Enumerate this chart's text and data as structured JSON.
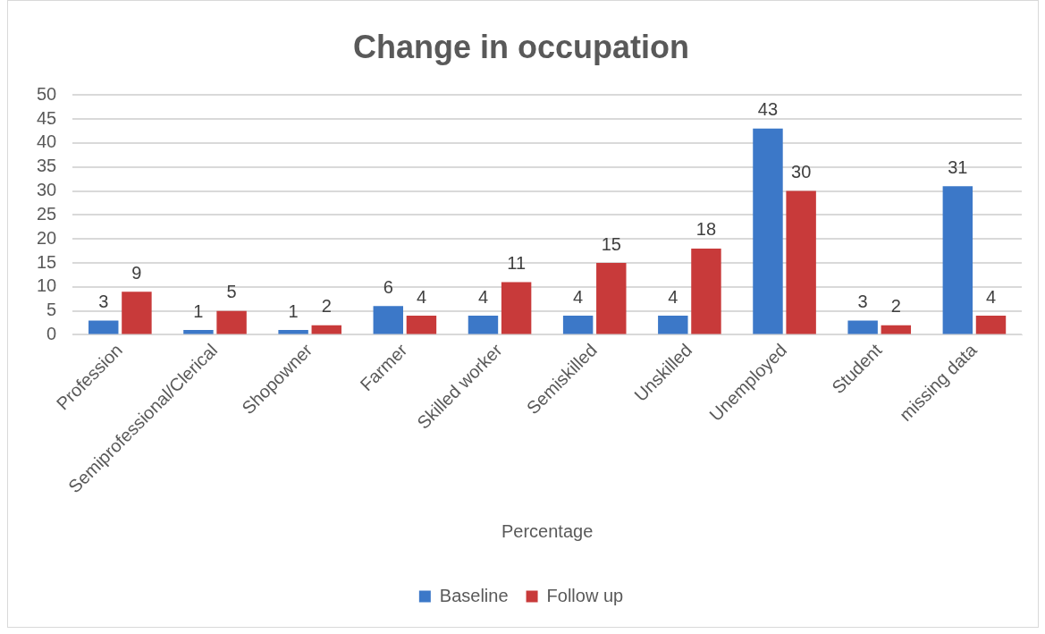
{
  "chart_data": {
    "type": "bar",
    "title": "Change in occupation",
    "xlabel": "Percentage",
    "categories": [
      "Profession",
      "Semiprofessional/Clerical",
      "Shopowner",
      "Farmer",
      "Skilled worker",
      "Semiskilled",
      "Unskilled",
      "Unemployed",
      "Student",
      "missing data"
    ],
    "series": [
      {
        "name": "Baseline",
        "color": "#3c78c8",
        "values": [
          3,
          1,
          1,
          6,
          4,
          4,
          4,
          43,
          3,
          31
        ]
      },
      {
        "name": "Follow up",
        "color": "#c83a3a",
        "values": [
          9,
          5,
          2,
          4,
          11,
          15,
          18,
          30,
          2,
          4
        ]
      }
    ],
    "ylim": [
      0,
      50
    ],
    "yticks": [
      0,
      5,
      10,
      15,
      20,
      25,
      30,
      35,
      40,
      45,
      50
    ],
    "grid": "y",
    "legend": "bottom",
    "data_labels": true
  }
}
